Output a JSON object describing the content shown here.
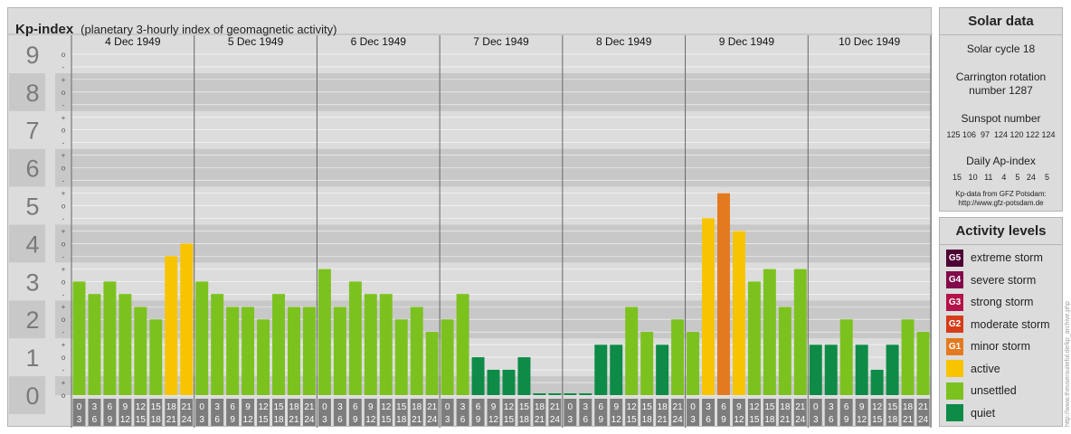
{
  "header": {
    "title": "Kp-index",
    "subtitle": "(planetary 3-hourly index of geomagnetic activity)"
  },
  "chart_data": {
    "type": "bar",
    "title": "Kp-index",
    "subtitle": "(planetary 3-hourly index of geomagnetic activity)",
    "y_tick_labels": [
      "0",
      "1",
      "2",
      "3",
      "4",
      "5",
      "6",
      "7",
      "8",
      "9"
    ],
    "y_minor_labels": [
      "o",
      "+",
      "-"
    ],
    "ylim": [
      0,
      9
    ],
    "grid": true,
    "days": [
      "4 Dec 1949",
      "5 Dec 1949",
      "6 Dec 1949",
      "7 Dec 1949",
      "8 Dec 1949",
      "9 Dec 1949",
      "10 Dec 1949"
    ],
    "interval_labels": [
      [
        "0",
        "3"
      ],
      [
        "3",
        "6"
      ],
      [
        "6",
        "9"
      ],
      [
        "9",
        "12"
      ],
      [
        "12",
        "15"
      ],
      [
        "15",
        "18"
      ],
      [
        "18",
        "21"
      ],
      [
        "21",
        "24"
      ]
    ],
    "series": [
      {
        "values": [
          [
            3.0,
            2.67,
            3.0,
            2.67,
            2.33,
            2.0,
            3.67,
            4.0
          ],
          [
            3.0,
            2.67,
            2.33,
            2.33,
            2.0,
            2.67,
            2.33,
            2.33
          ],
          [
            3.33,
            2.33,
            3.0,
            2.67,
            2.67,
            2.0,
            2.33,
            1.67
          ],
          [
            2.0,
            2.67,
            1.0,
            0.67,
            0.67,
            1.0,
            0.0,
            0.0
          ],
          [
            0.0,
            0.0,
            1.33,
            1.33,
            2.33,
            1.67,
            1.33,
            2.0
          ],
          [
            1.67,
            4.67,
            5.33,
            4.33,
            3.0,
            3.33,
            2.33,
            3.33
          ],
          [
            1.33,
            1.33,
            2.0,
            1.33,
            0.67,
            1.33,
            2.0,
            1.67
          ]
        ]
      }
    ],
    "colors": {
      "quiet": "#0d8b47",
      "unsettled": "#7cc21f",
      "active": "#f8c402",
      "G1": "#e47a20",
      "G2": "#d63c1a",
      "G3": "#b4124a",
      "G4": "#82094b",
      "G5": "#4d0033"
    }
  },
  "solar": {
    "title": "Solar data",
    "cycle": "Solar cycle 18",
    "carrington_line1": "Carrington rotation",
    "carrington_line2": "number 1287",
    "sunspot_title": "Sunspot number",
    "sunspot_values": "125 106  97  124 120 122 124",
    "ap_title": "Daily Ap-index",
    "ap_values": "15   10   11    4    5   24    5",
    "source_line1": "Kp-data from GFZ Potsdam:",
    "source_line2": "http://www.gfz-potsdam.de"
  },
  "levels": {
    "title": "Activity levels",
    "items": [
      {
        "badge": "G5",
        "label": "extreme storm",
        "color": "#4d0033"
      },
      {
        "badge": "G4",
        "label": "severe storm",
        "color": "#82094b"
      },
      {
        "badge": "G3",
        "label": "strong storm",
        "color": "#b4124a"
      },
      {
        "badge": "G2",
        "label": "moderate storm",
        "color": "#d63c1a"
      },
      {
        "badge": "G1",
        "label": "minor storm",
        "color": "#e47a20"
      },
      {
        "badge": "",
        "label": "active",
        "color": "#f8c402"
      },
      {
        "badge": "",
        "label": "unsettled",
        "color": "#7cc21f"
      },
      {
        "badge": "",
        "label": "quiet",
        "color": "#0d8b47"
      }
    ]
  },
  "watermark": "http://www.theusersuiteful.de/kp_archive.php"
}
